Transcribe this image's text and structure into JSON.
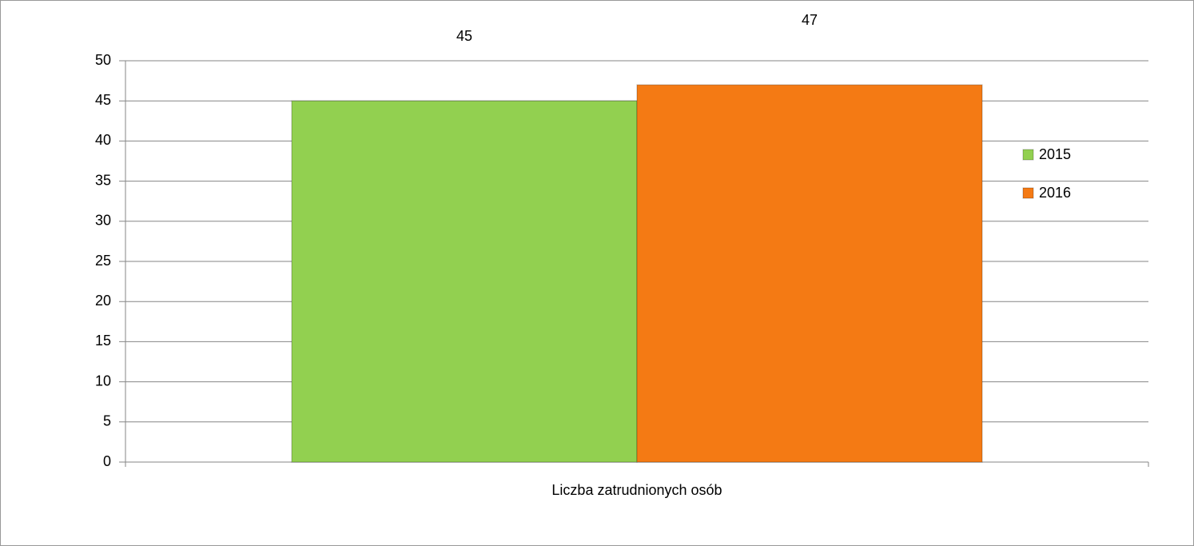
{
  "chart_data": {
    "type": "bar",
    "categories": [
      "Liczba zatrudnionych osób"
    ],
    "series": [
      {
        "name": "2015",
        "color": "#92d050",
        "values": [
          45
        ]
      },
      {
        "name": "2016",
        "color": "#f47a14",
        "values": [
          47
        ]
      }
    ],
    "ylim": [
      0,
      50
    ],
    "yticks": [
      0,
      5,
      10,
      15,
      20,
      25,
      30,
      35,
      40,
      45,
      50
    ],
    "grid": true,
    "legend": "right"
  }
}
